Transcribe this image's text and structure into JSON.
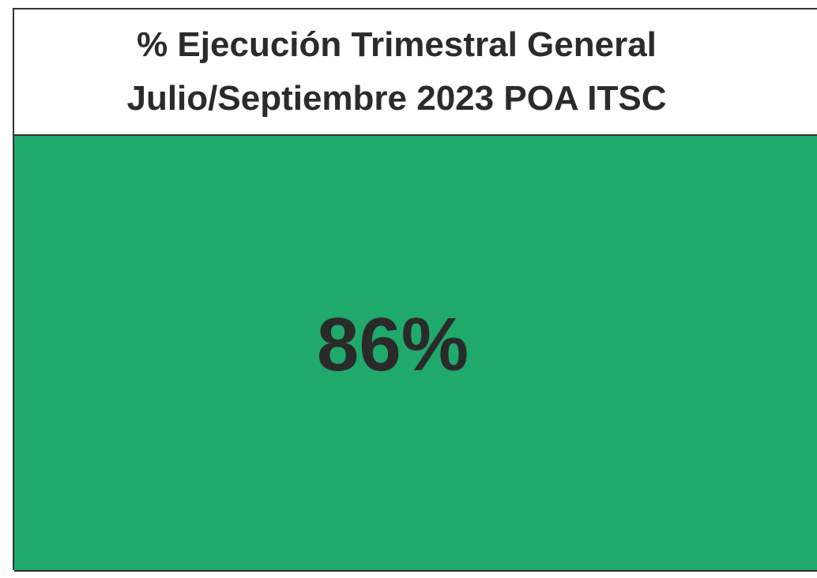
{
  "header": {
    "title_lines": [
      "% Ejecución Trimestral General",
      "Julio/Septiembre 2023 POA ITSC"
    ]
  },
  "cell": {
    "value": "86%"
  }
}
